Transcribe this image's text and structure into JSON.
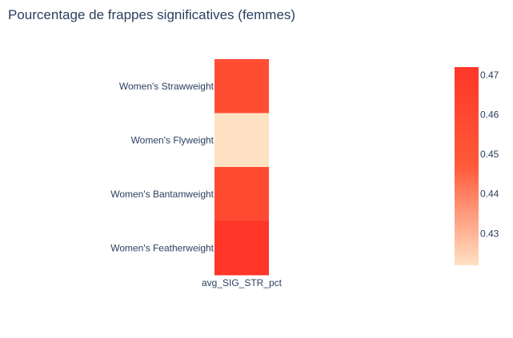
{
  "chart_data": {
    "type": "heatmap",
    "title": "Pourcentage de frappes significatives (femmes)",
    "x_categories": [
      "avg_SIG_STR_pct"
    ],
    "y_categories": [
      "Women's Strawweight",
      "Women's Flyweight",
      "Women's Bantamweight",
      "Women's Featherweight"
    ],
    "values": [
      [
        0.456
      ],
      [
        0.422
      ],
      [
        0.458
      ],
      [
        0.472
      ]
    ],
    "colorscale": {
      "min": 0.422,
      "max": 0.472,
      "colors": [
        "#ffe1c3",
        "#ff5a3a",
        "#ff3628"
      ],
      "tick_values": [
        0.43,
        0.44,
        0.45,
        0.46,
        0.47
      ],
      "tick_labels": [
        "0.43",
        "0.44",
        "0.45",
        "0.46",
        "0.47"
      ]
    },
    "grid": false
  }
}
